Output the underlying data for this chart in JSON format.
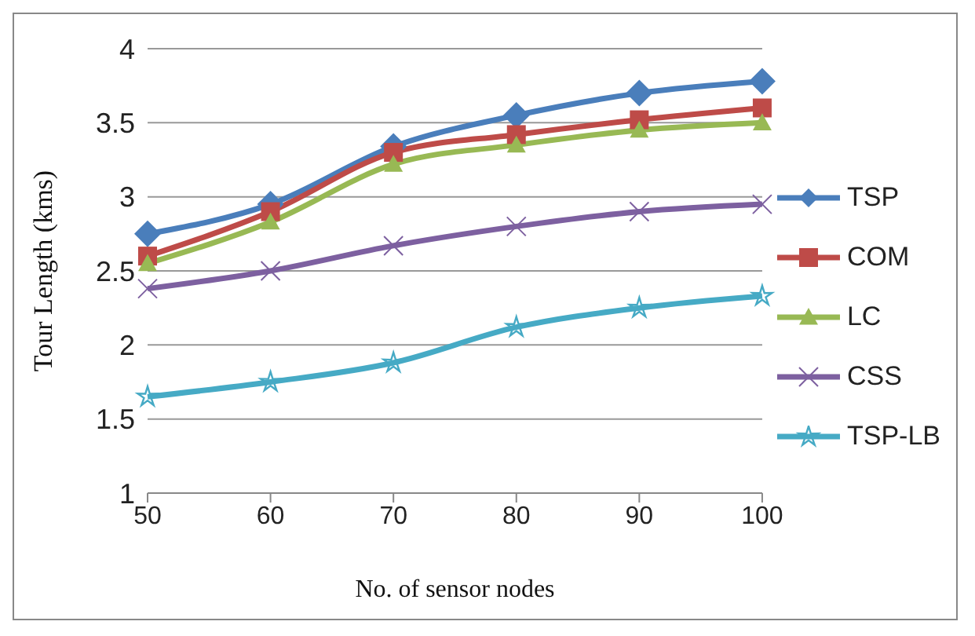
{
  "chart_data": {
    "type": "line",
    "xlabel": "No. of sensor nodes",
    "ylabel": "Tour Length (kms)",
    "categories": [
      "50",
      "60",
      "70",
      "80",
      "90",
      "100"
    ],
    "series": [
      {
        "name": "TSP",
        "color": "#4a7ebb",
        "marker": "diamond",
        "values": [
          2.75,
          2.95,
          3.34,
          3.55,
          3.7,
          3.78
        ]
      },
      {
        "name": "COM",
        "color": "#be4b48",
        "marker": "square",
        "values": [
          2.6,
          2.9,
          3.3,
          3.42,
          3.52,
          3.6
        ]
      },
      {
        "name": "LC",
        "color": "#98b954",
        "marker": "triangle",
        "values": [
          2.55,
          2.83,
          3.22,
          3.35,
          3.45,
          3.5
        ]
      },
      {
        "name": "CSS",
        "color": "#7d60a0",
        "marker": "cross",
        "values": [
          2.38,
          2.5,
          2.67,
          2.8,
          2.9,
          2.95
        ]
      },
      {
        "name": "TSP-LB",
        "color": "#46aac5",
        "marker": "star",
        "values": [
          1.65,
          1.75,
          1.88,
          2.12,
          2.25,
          2.33
        ]
      }
    ],
    "ylim": [
      1,
      4
    ],
    "yticks": [
      1,
      1.5,
      2,
      2.5,
      3,
      3.5,
      4
    ],
    "grid": "y",
    "legend": "right"
  }
}
